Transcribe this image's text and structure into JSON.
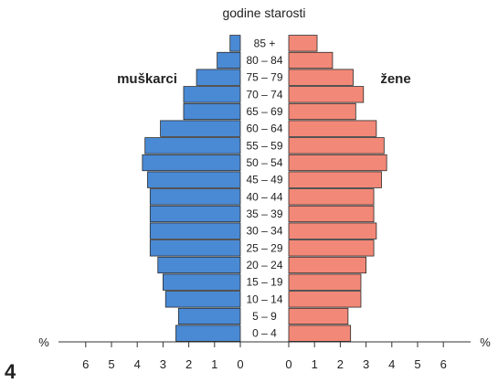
{
  "figure_number": "4",
  "chart_data": {
    "type": "bar",
    "orientation": "horizontal",
    "layout": "population-pyramid",
    "title": "godine starosti",
    "xlabel": "%",
    "categories": [
      "0 – 4",
      "5 – 9",
      "10 – 14",
      "15 – 19",
      "20 – 24",
      "25 – 29",
      "30 – 34",
      "35 – 39",
      "40 – 44",
      "45 – 49",
      "50 – 54",
      "55 – 59",
      "60 – 64",
      "65 – 69",
      "70 – 74",
      "75 – 79",
      "80 – 84",
      "85 +"
    ],
    "xticks": [
      6,
      5,
      4,
      3,
      2,
      1,
      0
    ],
    "xlim": [
      0,
      7
    ],
    "series": [
      {
        "name": "muškarci",
        "side": "left",
        "color": "#4a8ad4",
        "values": [
          2.5,
          2.4,
          2.9,
          3.0,
          3.2,
          3.5,
          3.5,
          3.5,
          3.5,
          3.6,
          3.8,
          3.7,
          3.1,
          2.2,
          2.2,
          1.7,
          0.9,
          0.4
        ]
      },
      {
        "name": "žene",
        "side": "right",
        "color": "#f28877",
        "values": [
          2.4,
          2.3,
          2.8,
          2.8,
          3.0,
          3.3,
          3.4,
          3.3,
          3.3,
          3.6,
          3.8,
          3.7,
          3.4,
          2.6,
          2.9,
          2.5,
          1.7,
          1.1
        ]
      }
    ]
  }
}
